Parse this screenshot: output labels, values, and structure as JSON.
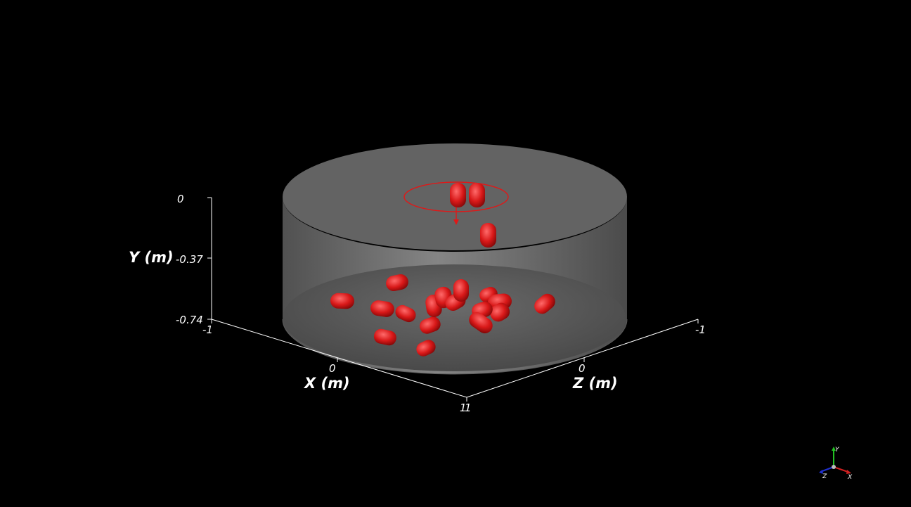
{
  "viewer": {
    "axes": {
      "y": {
        "title": "Y (m)",
        "ticks": [
          "0",
          "-0.37",
          "-0.74"
        ]
      },
      "x": {
        "title": "X (m)",
        "ticks": [
          "-1",
          "0",
          "1"
        ]
      },
      "z": {
        "title": "Z (m)",
        "ticks": [
          "-1",
          "0",
          "1"
        ]
      }
    },
    "orientation_triad": {
      "labels": [
        "Y",
        "Z",
        "X"
      ]
    }
  },
  "colors": {
    "background": "#000000",
    "container": "#8a8a8a",
    "particles": "#e01818",
    "axes": "#ffffff"
  }
}
